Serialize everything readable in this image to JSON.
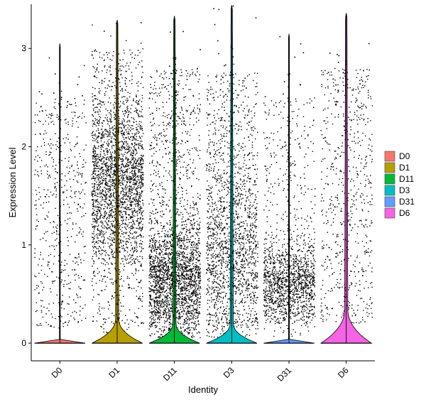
{
  "chart_data": {
    "type": "violin",
    "title": "",
    "xlabel": "Identity",
    "ylabel": "Expression Level",
    "ylim": [
      -0.18,
      3.45
    ],
    "yticks": [
      0,
      1,
      2,
      3
    ],
    "ytick_labels": [
      "0",
      "1",
      "2",
      "3"
    ],
    "categories": [
      "D0",
      "D1",
      "D11",
      "D3",
      "D31",
      "D6"
    ],
    "legend": {
      "position": "right",
      "entries": [
        "D0",
        "D1",
        "D11",
        "D3",
        "D31",
        "D6"
      ]
    },
    "grid": false,
    "series": [
      {
        "name": "D0",
        "color": "#F8766D",
        "max": 3.05,
        "nonzero_cells": 520,
        "violin_bulge_top": 0.0,
        "points_center": 1.3,
        "points_spread": "uniform 0.2-2.5"
      },
      {
        "name": "D1",
        "color": "#B79F00",
        "max": 3.29,
        "nonzero_cells": 2600,
        "violin_bulge_top": 0.25,
        "points_center": 1.7,
        "points_spread": "concentrated 1.2-2.2"
      },
      {
        "name": "D11",
        "color": "#00BA38",
        "max": 3.33,
        "nonzero_cells": 2600,
        "violin_bulge_top": 0.2,
        "points_center": 0.7,
        "points_spread": "concentrated 0.3-1.0"
      },
      {
        "name": "D3",
        "color": "#00BFC4",
        "max": 3.44,
        "nonzero_cells": 1800,
        "violin_bulge_top": 0.2,
        "points_center": 1.2,
        "points_spread": "broad 0.2-2.2"
      },
      {
        "name": "D31",
        "color": "#619CFF",
        "max": 3.15,
        "nonzero_cells": 1500,
        "violin_bulge_top": 0.0,
        "points_center": 0.6,
        "points_spread": "concentrated 0.3-0.9"
      },
      {
        "name": "D6",
        "color": "#F564E3",
        "max": 3.36,
        "nonzero_cells": 650,
        "violin_bulge_top": 0.35,
        "points_center": 1.5,
        "points_spread": "broad 0.3-2.6"
      }
    ]
  }
}
